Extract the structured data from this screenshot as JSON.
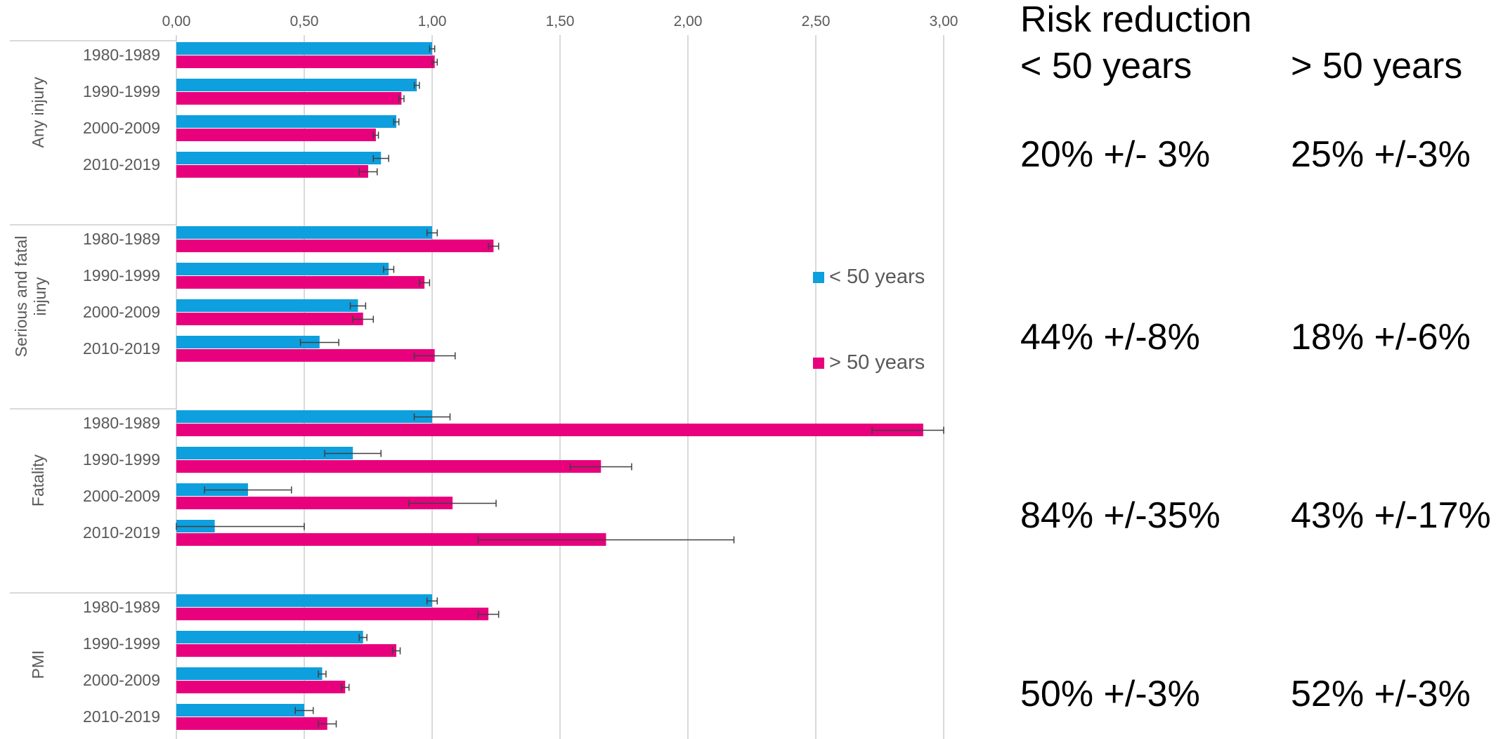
{
  "chart_data": {
    "type": "bar",
    "orientation": "horizontal",
    "xlim": [
      0,
      3.0
    ],
    "x_ticks": [
      "0,00",
      "0,50",
      "1,00",
      "1,50",
      "2,00",
      "2,50",
      "3,00"
    ],
    "x_tick_values": [
      0,
      0.5,
      1.0,
      1.5,
      2.0,
      2.5,
      3.0
    ],
    "grid": "vertical",
    "legend_position": "right",
    "series": [
      {
        "name": "< 50 years",
        "color": "#0e9fde"
      },
      {
        "name": "> 50 years",
        "color": "#e8007d"
      }
    ],
    "groups": [
      {
        "name": "Any injury",
        "categories": [
          {
            "label": "1980-1989",
            "values": [
              1.0,
              1.01
            ],
            "errors": [
              0.01,
              0.01
            ]
          },
          {
            "label": "1990-1999",
            "values": [
              0.94,
              0.88
            ],
            "errors": [
              0.01,
              0.01
            ]
          },
          {
            "label": "2000-2009",
            "values": [
              0.86,
              0.78
            ],
            "errors": [
              0.01,
              0.01
            ]
          },
          {
            "label": "2010-2019",
            "values": [
              0.8,
              0.75
            ],
            "errors": [
              0.03,
              0.035
            ]
          }
        ]
      },
      {
        "name": "Serious and fatal injury",
        "categories": [
          {
            "label": "1980-1989",
            "values": [
              1.0,
              1.24
            ],
            "errors": [
              0.02,
              0.02
            ]
          },
          {
            "label": "1990-1999",
            "values": [
              0.83,
              0.97
            ],
            "errors": [
              0.02,
              0.02
            ]
          },
          {
            "label": "2000-2009",
            "values": [
              0.71,
              0.73
            ],
            "errors": [
              0.03,
              0.04
            ]
          },
          {
            "label": "2010-2019",
            "values": [
              0.56,
              1.01
            ],
            "errors": [
              0.075,
              0.08
            ]
          }
        ]
      },
      {
        "name": "Fatality",
        "categories": [
          {
            "label": "1980-1989",
            "values": [
              1.0,
              2.92
            ],
            "errors": [
              0.07,
              0.2
            ]
          },
          {
            "label": "1990-1999",
            "values": [
              0.69,
              1.66
            ],
            "errors": [
              0.11,
              0.12
            ]
          },
          {
            "label": "2000-2009",
            "values": [
              0.28,
              1.08
            ],
            "errors": [
              0.17,
              0.17
            ]
          },
          {
            "label": "2010-2019",
            "values": [
              0.15,
              1.68
            ],
            "errors": [
              0.35,
              0.5
            ]
          }
        ]
      },
      {
        "name": "PMI",
        "categories": [
          {
            "label": "1980-1989",
            "values": [
              1.0,
              1.22
            ],
            "errors": [
              0.02,
              0.04
            ]
          },
          {
            "label": "1990-1999",
            "values": [
              0.73,
              0.86
            ],
            "errors": [
              0.015,
              0.015
            ]
          },
          {
            "label": "2000-2009",
            "values": [
              0.57,
              0.66
            ],
            "errors": [
              0.015,
              0.015
            ]
          },
          {
            "label": "2010-2019",
            "values": [
              0.5,
              0.59
            ],
            "errors": [
              0.035,
              0.035
            ]
          }
        ]
      }
    ]
  },
  "risk_reduction": {
    "title": "Risk reduction",
    "col1_header": "< 50 years",
    "col2_header": "> 50 years",
    "rows": [
      {
        "col1": "20% +/- 3%",
        "col2": "25% +/-3%"
      },
      {
        "col1": "44% +/-8%",
        "col2": "18% +/-6%"
      },
      {
        "col1": "84% +/-35%",
        "col2": "43% +/-17%"
      },
      {
        "col1": "50% +/-3%",
        "col2": "52% +/-3%"
      }
    ]
  }
}
